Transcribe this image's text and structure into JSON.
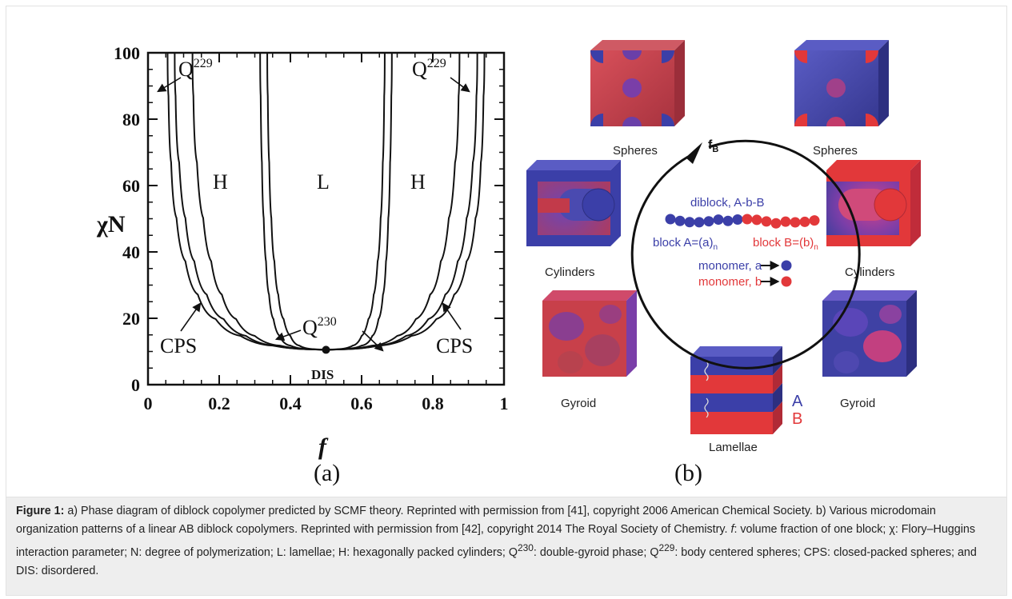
{
  "panel_a": {
    "chart_data": {
      "type": "line",
      "xlabel": "f",
      "ylabel": "χN",
      "xlim": [
        0,
        1
      ],
      "ylim": [
        0,
        100
      ],
      "x_ticks": [
        "0",
        "0.2",
        "0.4",
        "0.6",
        "0.8",
        "1"
      ],
      "y_ticks": [
        "0",
        "20",
        "40",
        "60",
        "80",
        "100"
      ],
      "critical_point": {
        "x": 0.5,
        "y": 10.5,
        "label": "DIS"
      },
      "series": [
        {
          "values": [
            [
              0.055,
              100
            ],
            [
              0.06,
              80
            ],
            [
              0.07,
              60
            ],
            [
              0.09,
              45
            ],
            [
              0.12,
              33
            ],
            [
              0.16,
              24
            ],
            [
              0.22,
              17.5
            ],
            [
              0.3,
              13.2
            ],
            [
              0.4,
              11
            ],
            [
              0.5,
              10.5
            ]
          ]
        },
        {
          "values": [
            [
              0.075,
              100
            ],
            [
              0.08,
              80
            ],
            [
              0.095,
              60
            ],
            [
              0.115,
              45
            ],
            [
              0.145,
              33
            ],
            [
              0.185,
              24
            ],
            [
              0.24,
              17.5
            ],
            [
              0.31,
              13.2
            ],
            [
              0.4,
              11
            ],
            [
              0.5,
              10.5
            ]
          ]
        },
        {
          "values": [
            [
              0.125,
              100
            ],
            [
              0.13,
              80
            ],
            [
              0.145,
              60
            ],
            [
              0.165,
              45
            ],
            [
              0.19,
              33
            ],
            [
              0.225,
              24
            ],
            [
              0.27,
              17.5
            ],
            [
              0.33,
              13.2
            ],
            [
              0.41,
              11
            ],
            [
              0.5,
              10.5
            ]
          ]
        },
        {
          "values": [
            [
              0.315,
              100
            ],
            [
              0.318,
              80
            ],
            [
              0.322,
              60
            ],
            [
              0.328,
              45
            ],
            [
              0.335,
              33
            ],
            [
              0.345,
              24
            ],
            [
              0.36,
              17.5
            ],
            [
              0.38,
              13.2
            ],
            [
              0.42,
              11
            ],
            [
              0.5,
              10.5
            ]
          ]
        },
        {
          "values": [
            [
              0.335,
              100
            ],
            [
              0.338,
              80
            ],
            [
              0.343,
              60
            ],
            [
              0.35,
              45
            ],
            [
              0.36,
              33
            ],
            [
              0.372,
              24
            ],
            [
              0.39,
              17.5
            ],
            [
              0.41,
              13.2
            ],
            [
              0.44,
              11
            ],
            [
              0.5,
              10.5
            ]
          ]
        },
        {
          "values": [
            [
              0.665,
              100
            ],
            [
              0.662,
              80
            ],
            [
              0.657,
              60
            ],
            [
              0.65,
              45
            ],
            [
              0.64,
              33
            ],
            [
              0.628,
              24
            ],
            [
              0.61,
              17.5
            ],
            [
              0.59,
              13.2
            ],
            [
              0.56,
              11
            ],
            [
              0.5,
              10.5
            ]
          ]
        },
        {
          "values": [
            [
              0.685,
              100
            ],
            [
              0.682,
              80
            ],
            [
              0.678,
              60
            ],
            [
              0.672,
              45
            ],
            [
              0.665,
              33
            ],
            [
              0.655,
              24
            ],
            [
              0.64,
              17.5
            ],
            [
              0.62,
              13.2
            ],
            [
              0.58,
              11
            ],
            [
              0.5,
              10.5
            ]
          ]
        },
        {
          "values": [
            [
              0.875,
              100
            ],
            [
              0.87,
              80
            ],
            [
              0.855,
              60
            ],
            [
              0.835,
              45
            ],
            [
              0.81,
              33
            ],
            [
              0.775,
              24
            ],
            [
              0.73,
              17.5
            ],
            [
              0.67,
              13.2
            ],
            [
              0.59,
              11
            ],
            [
              0.5,
              10.5
            ]
          ]
        },
        {
          "values": [
            [
              0.925,
              100
            ],
            [
              0.92,
              80
            ],
            [
              0.905,
              60
            ],
            [
              0.885,
              45
            ],
            [
              0.855,
              33
            ],
            [
              0.815,
              24
            ],
            [
              0.76,
              17.5
            ],
            [
              0.69,
              13.2
            ],
            [
              0.6,
              11
            ],
            [
              0.5,
              10.5
            ]
          ]
        },
        {
          "values": [
            [
              0.945,
              100
            ],
            [
              0.94,
              80
            ],
            [
              0.93,
              60
            ],
            [
              0.91,
              45
            ],
            [
              0.88,
              33
            ],
            [
              0.84,
              24
            ],
            [
              0.78,
              17.5
            ],
            [
              0.7,
              13.2
            ],
            [
              0.6,
              11
            ],
            [
              0.5,
              10.5
            ]
          ]
        }
      ],
      "annotations": {
        "q229": "Q",
        "q229_sup": "229",
        "q230": "Q",
        "q230_sup": "230",
        "h": "H",
        "l": "L",
        "cps": "CPS"
      }
    },
    "panel_label": "(a)"
  },
  "panel_b": {
    "panel_label": "(b)",
    "f_b_main": "f",
    "f_b_sub": "B",
    "diblock_label": "diblock, A-b-B",
    "block_a_text": "block A=(a)",
    "block_b_text": "block B=(b)",
    "block_sub": "n",
    "monomer_a": "monomer, a",
    "monomer_b": "monomer, b",
    "morphologies": {
      "spheres_left": "Spheres",
      "spheres_right": "Spheres",
      "cylinders_left": "Cylinders",
      "cylinders_right": "Cylinders",
      "gyroid_left": "Gyroid",
      "gyroid_right": "Gyroid",
      "lamellae": "Lamellae"
    },
    "layer_a": "A",
    "layer_b": "B",
    "colors": {
      "blue": "#3b3fa8",
      "red": "#e2383a"
    }
  },
  "caption": {
    "label": "Figure 1:",
    "part1": " a) Phase diagram of diblock copolymer predicted by SCMF theory. Reprinted with permission from [41], copyright 2006 American Chemical Society. b) Various microdomain organization patterns of a linear AB diblock copolymers. Reprinted with permission from [42], copyright 2014 The Royal Society of Chemistry. ",
    "f_italic": "f",
    "part2": ": volume fraction of one block; χ: Flory–Huggins interaction parameter; N: degree of polymerization; L: lamellae; H: hexagonally packed cylinders; Q",
    "sup230": "230",
    "part3": ": double-gyroid phase; Q",
    "sup229": "229",
    "part4": ": body centered spheres; CPS: closed-packed spheres; and DIS: disordered."
  }
}
